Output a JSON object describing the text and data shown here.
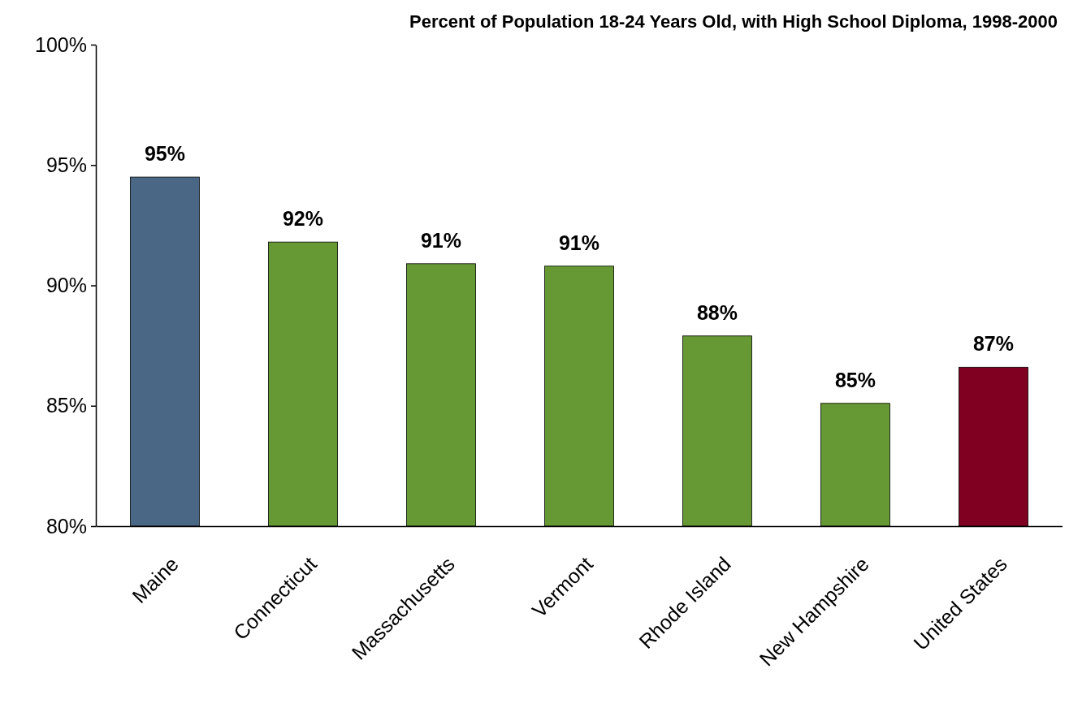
{
  "chart_data": {
    "type": "bar",
    "title": "Percent of Population 18-24 Years Old, with High School Diploma, 1998-2000",
    "categories": [
      "Maine",
      "Connecticut",
      "Massachusetts",
      "Vermont",
      "Rhode Island",
      "New Hampshire",
      "United States"
    ],
    "values": [
      94.5,
      91.8,
      90.9,
      90.8,
      87.9,
      85.1,
      86.6
    ],
    "colors": [
      "#4a6885",
      "#669933",
      "#669933",
      "#669933",
      "#669933",
      "#669933",
      "#7f0020"
    ],
    "value_labels": [
      "95%",
      "92%",
      "91%",
      "91%",
      "88%",
      "85%",
      "87%"
    ],
    "ylim": [
      80,
      100
    ],
    "yticks": [
      {
        "value": 80,
        "label": "80%"
      },
      {
        "value": 85,
        "label": "85%"
      },
      {
        "value": 90,
        "label": "90%"
      },
      {
        "value": 95,
        "label": "95%"
      },
      {
        "value": 100,
        "label": "100%"
      }
    ],
    "grid": false
  }
}
